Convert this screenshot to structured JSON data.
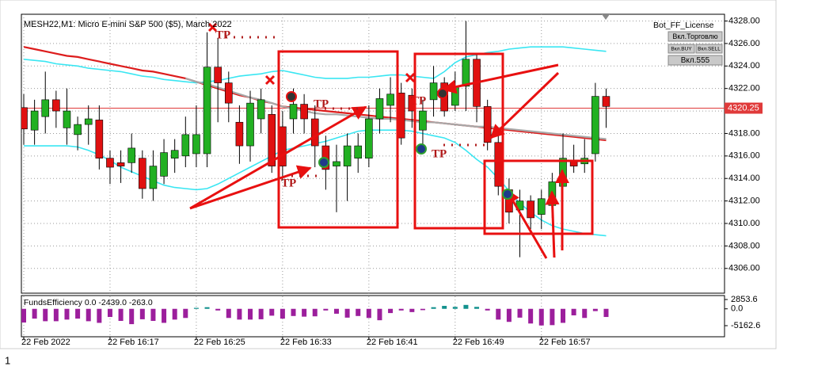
{
  "chart_data": [
    {
      "type": "candlestick",
      "title": "MESH22,M1:  Micro E-mini S&P 500 ($5), March 2022",
      "categories": [
        "22 Feb 2022",
        null,
        null,
        null,
        null,
        null,
        null,
        null,
        "22 Feb 16:17",
        null,
        null,
        null,
        null,
        null,
        null,
        null,
        "22 Feb 16:25",
        null,
        null,
        null,
        null,
        null,
        null,
        null,
        "22 Feb 16:33",
        null,
        null,
        null,
        null,
        null,
        null,
        null,
        "22 Feb 16:41",
        null,
        null,
        null,
        null,
        null,
        null,
        null,
        "22 Feb 16:49",
        null,
        null,
        null,
        null,
        null,
        null,
        null,
        "22 Feb 16:57",
        null,
        null,
        null,
        null,
        null,
        null
      ],
      "open": [
        4320.3,
        4318.3,
        4319.5,
        4321,
        4318.5,
        4317.9,
        4318.8,
        4319.2,
        4315.8,
        4315.4,
        4315.4,
        4315.8,
        4313.1,
        4314.2,
        4315.8,
        4316,
        4316.2,
        4316.2,
        4323.9,
        4322.5,
        4319,
        4316.9,
        4319.3,
        4319.7,
        4318.6,
        4319.3,
        4320.6,
        4319.3,
        4316.9,
        4315.1,
        4315.1,
        4315.8,
        4315.8,
        4319.3,
        4320.5,
        4321.6,
        4321.4,
        4318.3,
        4321,
        4322.5,
        4320.5,
        4322.2,
        4324.6,
        4320.4,
        4317.2,
        4313,
        4311.2,
        4312,
        4310.8,
        4311.6,
        4313.3,
        4315.6,
        4315.3,
        4316.2,
        4321.3
      ],
      "high": [
        4321.5,
        4321,
        4323.5,
        4321.8,
        4322,
        4319.5,
        4320.5,
        4320.5,
        4316.5,
        4316.5,
        4318,
        4316.5,
        4316.5,
        4317.5,
        4317.5,
        4319.5,
        4320.5,
        4327,
        4326.5,
        4323.5,
        4320.5,
        4321.8,
        4322,
        4320.5,
        4320,
        4322,
        4321.5,
        4320.5,
        4317.8,
        4317,
        4318,
        4318,
        4320.5,
        4322,
        4323,
        4322.5,
        4322,
        4321,
        4324,
        4323,
        4323.5,
        4328,
        4325,
        4321,
        4318,
        4314,
        4313,
        4312.5,
        4313,
        4314.5,
        4318,
        4317,
        4317.5,
        4322.5,
        4322
      ],
      "low": [
        4317,
        4317,
        4318,
        4318.5,
        4317,
        4316.5,
        4317,
        4314.8,
        4313.5,
        4313.6,
        4314.5,
        4312.2,
        4312,
        4313.5,
        4314.5,
        4315,
        4315,
        4315,
        4319,
        4319,
        4315.3,
        4315.5,
        4318,
        4314.5,
        4313.8,
        4318,
        4318,
        4315,
        4313,
        4311,
        4312,
        4314.5,
        4315,
        4318,
        4319,
        4317,
        4318.5,
        4316.5,
        4319.5,
        4319.5,
        4320,
        4320,
        4319,
        4316.5,
        4312.5,
        4310,
        4307,
        4309.5,
        4309.5,
        4310.5,
        4312.5,
        4314.5,
        4314.5,
        4315.5,
        4318.5
      ],
      "close": [
        4318.4,
        4320,
        4321,
        4320,
        4320,
        4318.8,
        4319.3,
        4315.8,
        4315,
        4315.1,
        4316.7,
        4313.1,
        4315.1,
        4316.3,
        4316.5,
        4317.9,
        4317.9,
        4323.9,
        4322.5,
        4320.7,
        4316.9,
        4320.7,
        4321,
        4315.1,
        4315.1,
        4320.6,
        4319.3,
        4316.9,
        4314.8,
        4315.5,
        4316.9,
        4316.9,
        4319.3,
        4321.1,
        4321.5,
        4317.6,
        4320,
        4320,
        4322.5,
        4320,
        4322.2,
        4324.6,
        4320.4,
        4317.2,
        4313.3,
        4311,
        4312,
        4310.5,
        4312.2,
        4313.7,
        4315.8,
        4315.1,
        4315.8,
        4321.3,
        4320.4
      ],
      "up_color": "#22b022",
      "down_color": "#e01010",
      "ylim": [
        4303.8,
        4328.6
      ],
      "yticks": [
        {
          "value": 4328,
          "label": "4328.00"
        },
        {
          "value": 4326,
          "label": "4326.00"
        },
        {
          "value": 4324,
          "label": "4324.00"
        },
        {
          "value": 4322,
          "label": "4322.00"
        },
        {
          "value": 4320,
          "label": "4320.00"
        },
        {
          "value": 4318,
          "label": "4318.00"
        },
        {
          "value": 4316,
          "label": "4316.00"
        },
        {
          "value": 4314,
          "label": "4314.00"
        },
        {
          "value": 4312,
          "label": "4312.00"
        },
        {
          "value": 4310,
          "label": "4310.00"
        },
        {
          "value": 4308,
          "label": "4308.00"
        },
        {
          "value": 4306,
          "label": "4306.00"
        }
      ],
      "grid": true,
      "last_price": 4320.25,
      "last_price_color": "#e03a3a",
      "overlays": [
        {
          "color": "#3ae6f2",
          "values": [
            4324.6,
            4324.5,
            4324.4,
            4324.2,
            4324.1,
            4324,
            4323.8,
            4323.7,
            4323.6,
            4323.5,
            4323.3,
            4323.1,
            4323,
            4322.8,
            4322.7,
            4322.6,
            4322.5,
            4322.6,
            4322.7,
            4322.9,
            4323.1,
            4323.2,
            4323.3,
            4323.5,
            4323.6,
            4323.4,
            4323.2,
            4323,
            4322.9,
            4322.9,
            4322.9,
            4323,
            4323,
            4323.1,
            4323.2,
            4323.2,
            4323.1,
            4323,
            4322.9,
            4323.5,
            4324.3,
            4324.8,
            4325,
            4325.2,
            4325.3,
            4325.5,
            4325.6,
            4325.7,
            4325.7,
            4325.7,
            4325.7,
            4325.6,
            4325.5,
            4325.4,
            4325.3
          ]
        },
        {
          "color": "#3ae6f2",
          "values": [
            4316.9,
            4316.9,
            4316.9,
            4316.9,
            4316.9,
            4316.8,
            4316.5,
            4316.1,
            4315.6,
            4315,
            4314.6,
            4314.2,
            4313.8,
            4313.4,
            4313.2,
            4313.1,
            4313,
            4313.1,
            4313.5,
            4314,
            4314.5,
            4315,
            4315.5,
            4316,
            4316.5,
            4316.7,
            4316.9,
            4317.1,
            4317.3,
            4317.6,
            4317.9,
            4318.2,
            4318.3,
            4318.3,
            4318.3,
            4318.3,
            4318.2,
            4318,
            4317.8,
            4317.6,
            4317.2,
            4316.5,
            4315.7,
            4315,
            4314,
            4312.9,
            4311.8,
            4311,
            4310.3,
            4309.8,
            4309.5,
            4309.3,
            4309.1,
            4309,
            4308.9
          ]
        },
        {
          "color": "#dd1c1c",
          "values": [
            4325.7,
            4325.5,
            4325.3,
            4325.1,
            4324.9,
            4324.8,
            4324.6,
            4324.4,
            4324.2,
            4324,
            4323.8,
            4323.6,
            4323.5,
            4323.3,
            4323.1,
            4322.9,
            4322.6,
            4322.3,
            4322,
            4321.7,
            4321.4,
            4321.2,
            4320.9,
            4320.7,
            4320.4,
            4320.3,
            4320.2,
            4320.1,
            4320,
            4319.9,
            4319.8,
            4319.7,
            4319.6,
            4319.5,
            4319.4,
            4319.3,
            4319.2,
            4319.1,
            4319,
            4318.9,
            4318.8,
            4318.7,
            4318.6,
            4318.5,
            4318.4,
            4318.3,
            4318.2,
            4318.1,
            4318,
            4317.9,
            4317.8,
            4317.7,
            4317.6,
            4317.5,
            4317.4
          ]
        },
        {
          "color": "#a8a8a8",
          "values": [
            null,
            null,
            null,
            null,
            null,
            null,
            null,
            null,
            null,
            null,
            null,
            null,
            null,
            null,
            null,
            4322.9,
            4322.6,
            4322.4,
            4322.1,
            4321.8,
            4321.5,
            4321.2,
            4321,
            4320.7,
            4320.4,
            4320.2,
            4320,
            4319.8,
            4319.7,
            4319.7,
            4319.6,
            4319.5,
            4319.4,
            4319.3,
            4319.3,
            4319.2,
            4319.1,
            4319,
            4319,
            4318.9,
            4318.8,
            4318.7,
            4318.6,
            4318.6,
            4318.5,
            4318.4,
            4318.3,
            4318.2,
            4318.1,
            4318,
            4317.9,
            4317.8,
            4317.7,
            4317.6,
            4317.5
          ]
        }
      ],
      "annotations": [
        "TP",
        "TP",
        "TP",
        "TP",
        "TP"
      ]
    },
    {
      "type": "bar",
      "title": "FundsEfficiency 0.0 -2439.0 -263.0",
      "values": [
        -4200,
        -3000,
        -3800,
        -3800,
        -3300,
        -3000,
        -3800,
        -4300,
        -2500,
        -3700,
        -4700,
        -3200,
        -3700,
        -4300,
        -3300,
        -2800,
        300,
        500,
        -500,
        -2800,
        -3300,
        -3300,
        -3200,
        -2100,
        -3000,
        -2200,
        -2400,
        -2300,
        -500,
        -1500,
        -2700,
        -2200,
        -2800,
        -3500,
        -1300,
        -500,
        -1000,
        -400,
        500,
        900,
        600,
        1200,
        600,
        -500,
        -3300,
        -4000,
        -2700,
        -4500,
        -5100,
        -5000,
        -4300,
        -2000,
        -2800,
        -700,
        -2500
      ],
      "positive_color": "#12918d",
      "negative_color": "#9c1f9c",
      "ylim": [
        -8563,
        4068
      ],
      "yticks": [
        2853.6,
        {
          "value": 0,
          "label": "0.0"
        },
        -5162.6
      ]
    }
  ],
  "panel": {
    "label": "Bot_FF_License",
    "buttons": [
      "Вкл.Торговлю",
      "Вкл.BUY",
      "Вкл.SELL",
      "Вкл.555"
    ]
  },
  "page_number": "1"
}
